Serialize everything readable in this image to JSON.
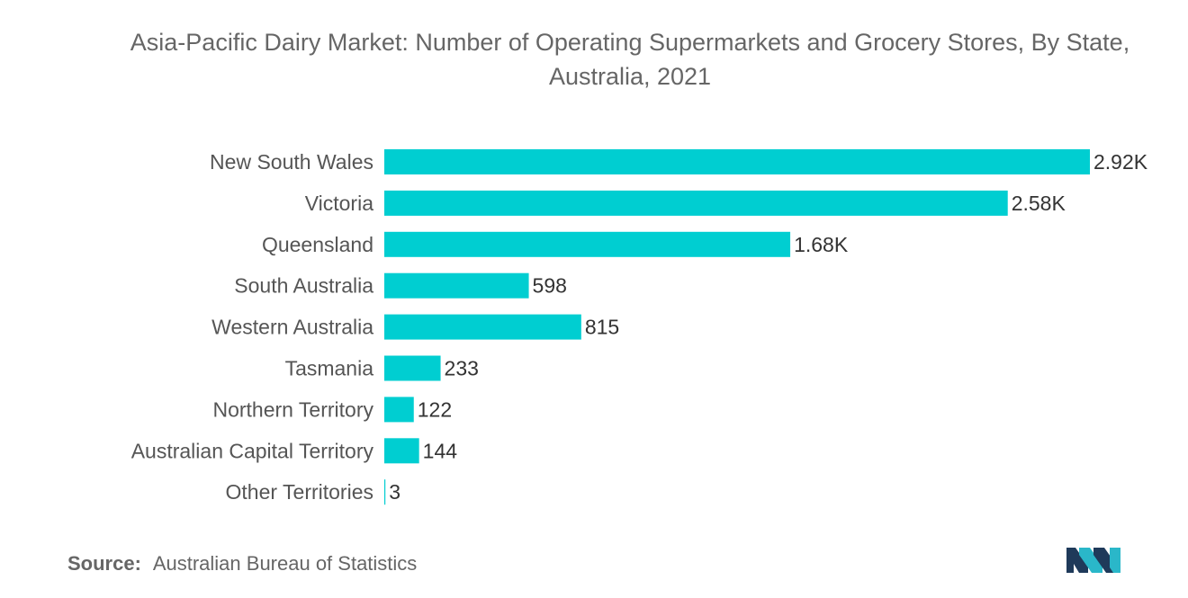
{
  "chart_data": {
    "type": "bar",
    "orientation": "horizontal",
    "title": "Asia-Pacific Dairy Market: Number of Operating Supermarkets and Grocery Stores, By State, Australia, 2021",
    "categories": [
      "New South Wales",
      "Victoria",
      "Queensland",
      "South Australia",
      "Western Australia",
      "Tasmania",
      "Northern Territory",
      "Australian Capital Territory",
      "Other Territories"
    ],
    "values": [
      2920,
      2580,
      1680,
      598,
      815,
      233,
      122,
      144,
      3
    ],
    "value_labels": [
      "2.92K",
      "2.58K",
      "1.68K",
      "598",
      "815",
      "233",
      "122",
      "144",
      "3"
    ],
    "xlim": [
      0,
      2920
    ],
    "grid": false,
    "legend": "none",
    "bar_color": "#00CED1"
  },
  "source": {
    "label": "Source:",
    "text": "Australian Bureau of Statistics"
  },
  "logo": {
    "icon": "mordor-intelligence-logo",
    "colors": [
      "#1a2a4a",
      "#2ab7c9"
    ]
  }
}
